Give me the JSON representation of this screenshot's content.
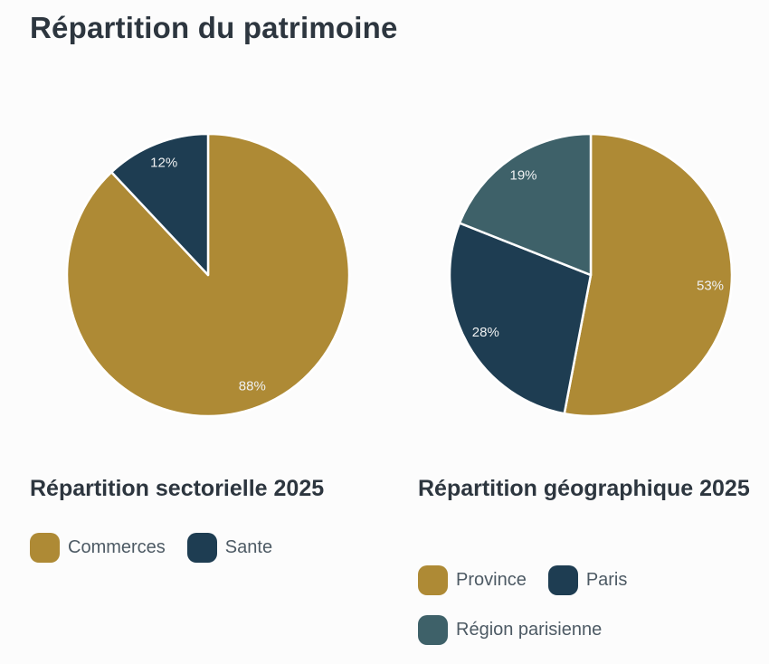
{
  "page": {
    "title": "Répartition du patrimoine"
  },
  "palette": {
    "gold": "#ae8a35",
    "navy": "#1e3d52",
    "teal": "#3e6169",
    "background": "#fcfcfc",
    "heading_text": "#2d363f",
    "legend_text": "#4d5a64",
    "slice_label_text": "#eef0f1",
    "slice_divider": "#ffffff"
  },
  "chart_data": [
    {
      "type": "pie",
      "title": "Répartition sectorielle 2025",
      "start_angle_deg": 0,
      "direction": "clockwise",
      "legend_position": "bottom",
      "slices": [
        {
          "label": "Commerces",
          "value_pct": 88,
          "display": "88%",
          "color": "#ae8a35"
        },
        {
          "label": "Sante",
          "value_pct": 12,
          "display": "12%",
          "color": "#1e3d52"
        }
      ]
    },
    {
      "type": "pie",
      "title": "Répartition géographique 2025",
      "start_angle_deg": 0,
      "direction": "clockwise",
      "legend_position": "bottom",
      "slices": [
        {
          "label": "Province",
          "value_pct": 53,
          "display": "53%",
          "color": "#ae8a35"
        },
        {
          "label": "Paris",
          "value_pct": 28,
          "display": "28%",
          "color": "#1e3d52"
        },
        {
          "label": "Région parisienne",
          "value_pct": 19,
          "display": "19%",
          "color": "#3e6169"
        }
      ]
    }
  ]
}
